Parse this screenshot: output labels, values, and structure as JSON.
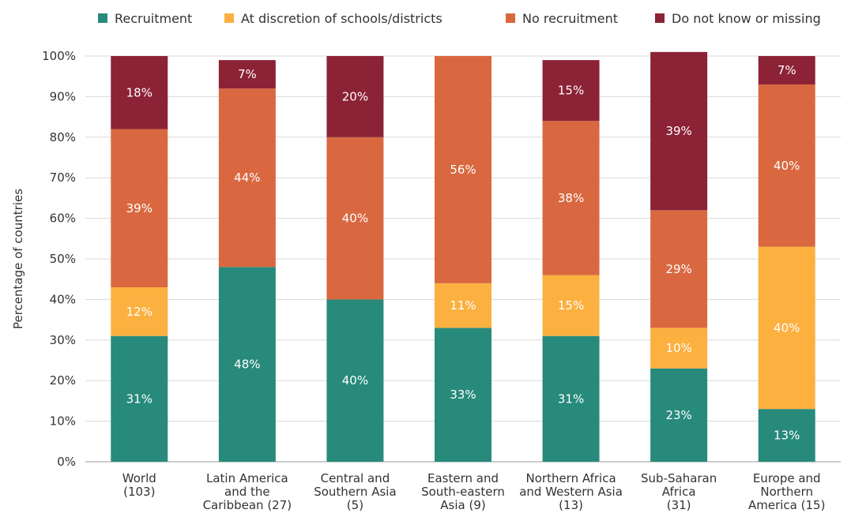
{
  "chart_data": {
    "type": "bar",
    "stacked": true,
    "ylabel": "Percentage of countries",
    "ylim": [
      0,
      100
    ],
    "yticks": [
      "0%",
      "10%",
      "20%",
      "30%",
      "40%",
      "50%",
      "60%",
      "70%",
      "80%",
      "90%",
      "100%"
    ],
    "grid": true,
    "legend_position": "top",
    "categories": [
      [
        "World",
        "(103)"
      ],
      [
        "Latin America",
        "and the",
        "Caribbean (27)"
      ],
      [
        "Central and",
        "Southern Asia",
        "(5)"
      ],
      [
        "Eastern and",
        "South-eastern",
        "Asia (9)"
      ],
      [
        "Northern Africa",
        "and Western Asia",
        "(13)"
      ],
      [
        "Sub-Saharan",
        "Africa",
        "(31)"
      ],
      [
        "Europe and",
        "Northern",
        "America (15)"
      ]
    ],
    "series": [
      {
        "name": "Recruitment",
        "color": "#278a7b",
        "values": [
          31,
          48,
          40,
          33,
          31,
          23,
          13
        ],
        "labels": [
          "31%",
          "48%",
          "40%",
          "33%",
          "31%",
          "23%",
          "13%"
        ]
      },
      {
        "name": "At discretion of schools/districts",
        "color": "#fbb040",
        "values": [
          12,
          0,
          0,
          11,
          15,
          10,
          40
        ],
        "labels": [
          "12%",
          "",
          "",
          "11%",
          "15%",
          "10%",
          "40%"
        ]
      },
      {
        "name": "No recruitment",
        "color": "#d96840",
        "values": [
          39,
          44,
          40,
          56,
          38,
          29,
          40
        ],
        "labels": [
          "39%",
          "44%",
          "40%",
          "56%",
          "38%",
          "29%",
          "40%"
        ]
      },
      {
        "name": "Do not know or missing",
        "color": "#8b2236",
        "values": [
          18,
          7,
          20,
          0,
          15,
          39,
          7
        ],
        "labels": [
          "18%",
          "7%",
          "20%",
          "",
          "15%",
          "39%",
          "7%"
        ]
      }
    ]
  }
}
